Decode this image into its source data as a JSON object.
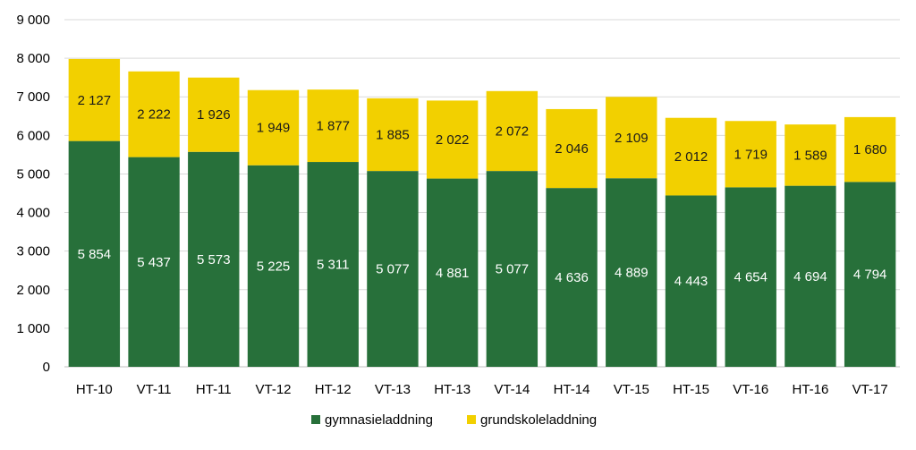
{
  "chart_data": {
    "type": "bar",
    "stacked": true,
    "title": "",
    "xlabel": "",
    "ylabel": "",
    "ylim": [
      0,
      9000
    ],
    "ytick_step": 1000,
    "ytick_labels": [
      "0",
      "1 000",
      "2 000",
      "3 000",
      "4 000",
      "5 000",
      "6 000",
      "7 000",
      "8 000",
      "9 000"
    ],
    "grid": true,
    "legend_position": "bottom",
    "categories": [
      "HT-10",
      "VT-11",
      "HT-11",
      "VT-12",
      "HT-12",
      "VT-13",
      "HT-13",
      "VT-14",
      "HT-14",
      "VT-15",
      "HT-15",
      "VT-16",
      "HT-16",
      "VT-17"
    ],
    "series": [
      {
        "name": "gymnasieladdning",
        "color": "#27703A",
        "label_color": "#FFFFFF",
        "values": [
          5854,
          5437,
          5573,
          5225,
          5311,
          5077,
          4881,
          5077,
          4636,
          4889,
          4443,
          4654,
          4694,
          4794
        ],
        "labels": [
          "5 854",
          "5 437",
          "5 573",
          "5 225",
          "5 311",
          "5 077",
          "4 881",
          "5 077",
          "4 636",
          "4 889",
          "4 443",
          "4 654",
          "4 694",
          "4 794"
        ]
      },
      {
        "name": "grundskoleladdning",
        "color": "#F2D000",
        "label_color": "#1A1A1A",
        "values": [
          2127,
          2222,
          1926,
          1949,
          1877,
          1885,
          2022,
          2072,
          2046,
          2109,
          2012,
          1719,
          1589,
          1680
        ],
        "labels": [
          "2 127",
          "2 222",
          "1 926",
          "1 949",
          "1 877",
          "1 885",
          "2 022",
          "2 072",
          "2 046",
          "2 109",
          "2 012",
          "1 719",
          "1 589",
          "1 680"
        ]
      }
    ],
    "gridline_color": "#D9D9D9",
    "axis_color": "#BFBFBF"
  }
}
